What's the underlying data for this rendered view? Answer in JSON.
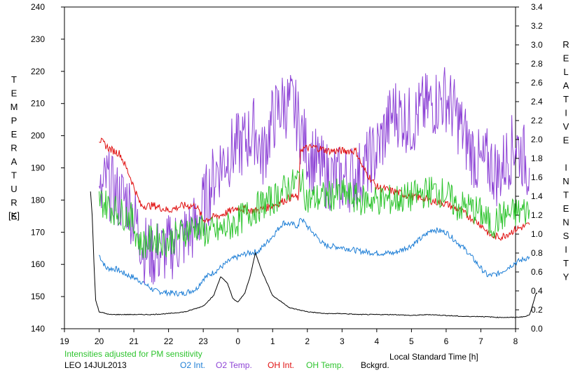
{
  "chart_data": {
    "type": "line",
    "title": "",
    "xlabel": "Local Standard Time [h]",
    "ylabel_left": "TEMPERATURE [K]",
    "ylabel_right": "RELATIVE INTENSITY",
    "ylabel_left_word": "TEMPERATURE",
    "ylabel_left_unit": "[K]",
    "ylabel_right_words": [
      "RELATIVE",
      "INTENSITY"
    ],
    "note": "Intensities adjusted for PM sensitivity",
    "station_date": "LEO 14JUL2013",
    "xlim": [
      19,
      32
    ],
    "x_tick_labels": [
      "19",
      "20",
      "21",
      "22",
      "23",
      "0",
      "1",
      "2",
      "3",
      "4",
      "5",
      "6",
      "7",
      "8"
    ],
    "ylim_left": [
      140,
      240
    ],
    "y_left_ticks": [
      140,
      150,
      160,
      170,
      180,
      190,
      200,
      210,
      220,
      230,
      240
    ],
    "ylim_right": [
      0,
      3.4
    ],
    "y_right_ticks": [
      "0.0",
      "0.2",
      "0.4",
      "0.6",
      "0.8",
      "1.0",
      "1.2",
      "1.4",
      "1.6",
      "1.8",
      "2.0",
      "2.2",
      "2.4",
      "2.6",
      "2.8",
      "3.0",
      "3.2",
      "3.4"
    ],
    "grid": false,
    "legend_position": "bottom",
    "series": [
      {
        "name": "O2 Int.",
        "axis": "right",
        "color": "#1f7fd6",
        "x": [
          20.0,
          20.2,
          20.5,
          20.8,
          21.0,
          21.3,
          21.6,
          22.0,
          22.4,
          22.8,
          23.0,
          23.4,
          23.8,
          24.2,
          24.6,
          25.0,
          25.3,
          25.6,
          25.75,
          25.8,
          26.0,
          26.5,
          27.0,
          27.5,
          28.0,
          28.5,
          29.0,
          29.3,
          29.6,
          30.0,
          30.3,
          30.6,
          31.0,
          31.2,
          31.5,
          32.0,
          32.4
        ],
        "y": [
          0.78,
          0.64,
          0.63,
          0.57,
          0.54,
          0.48,
          0.4,
          0.38,
          0.37,
          0.42,
          0.53,
          0.62,
          0.73,
          0.79,
          0.82,
          0.98,
          1.12,
          1.1,
          1.08,
          1.18,
          1.08,
          0.88,
          0.86,
          0.82,
          0.8,
          0.8,
          0.88,
          0.96,
          1.05,
          1.02,
          0.92,
          0.82,
          0.64,
          0.56,
          0.58,
          0.7,
          0.76
        ]
      },
      {
        "name": "O2 Temp.",
        "axis": "left",
        "color": "#8e44d6",
        "x": [
          20.0,
          20.2,
          20.5,
          20.8,
          21.0,
          21.3,
          21.6,
          22.0,
          22.4,
          22.8,
          23.0,
          23.4,
          23.8,
          24.2,
          24.5,
          24.7,
          25.0,
          25.3,
          25.6,
          26.0,
          26.5,
          27.0,
          27.5,
          28.0,
          28.5,
          29.0,
          29.3,
          29.6,
          30.0,
          30.3,
          30.6,
          31.0,
          31.2,
          31.5,
          32.0,
          32.4
        ],
        "y": [
          178,
          186,
          181,
          180,
          175,
          165,
          163,
          165,
          168,
          172,
          178,
          190,
          195,
          198,
          202,
          193,
          205,
          210,
          209,
          195,
          188,
          186,
          188,
          195,
          208,
          204,
          208,
          210,
          212,
          206,
          198,
          190,
          192,
          188,
          198,
          190
        ]
      },
      {
        "name": "OH Int.",
        "axis": "right",
        "color": "#e01010",
        "x": [
          20.0,
          20.3,
          20.6,
          20.9,
          21.2,
          21.6,
          22.0,
          22.4,
          22.8,
          23.0,
          23.5,
          24.0,
          24.3,
          24.6,
          25.0,
          25.3,
          25.6,
          25.75,
          25.8,
          26.2,
          26.6,
          27.0,
          27.4,
          27.6,
          28.0,
          28.5,
          29.0,
          29.3,
          29.6,
          30.0,
          30.4,
          30.8,
          31.0,
          31.3,
          31.6,
          32.0,
          32.4
        ],
        "y": [
          2.0,
          1.9,
          1.85,
          1.6,
          1.3,
          1.3,
          1.25,
          1.3,
          1.3,
          1.15,
          1.2,
          1.28,
          1.25,
          1.25,
          1.3,
          1.35,
          1.4,
          1.38,
          1.9,
          1.92,
          1.88,
          1.88,
          1.88,
          1.7,
          1.5,
          1.45,
          1.4,
          1.38,
          1.35,
          1.32,
          1.25,
          1.15,
          1.1,
          0.98,
          0.97,
          1.05,
          1.1
        ]
      },
      {
        "name": "OH Temp.",
        "axis": "left",
        "color": "#2ec42e",
        "x": [
          20.0,
          20.3,
          20.6,
          20.9,
          21.2,
          21.6,
          22.0,
          22.4,
          22.8,
          23.0,
          23.4,
          23.8,
          24.2,
          24.6,
          25.0,
          25.3,
          25.6,
          25.8,
          26.0,
          26.5,
          27.0,
          27.5,
          28.0,
          28.5,
          29.0,
          29.3,
          29.6,
          30.0,
          30.3,
          30.6,
          31.0,
          31.3,
          31.6,
          32.0,
          32.4
        ],
        "y": [
          180,
          178,
          176,
          175,
          166,
          168,
          167,
          170,
          172,
          170,
          170,
          172,
          175,
          178,
          180,
          183,
          185,
          187,
          180,
          181,
          182,
          180,
          180,
          180,
          181,
          182,
          183,
          182,
          178,
          178,
          176,
          172,
          175,
          176,
          177
        ]
      },
      {
        "name": "Bckgrd.",
        "axis": "right",
        "color": "#000000",
        "x": [
          19.75,
          19.8,
          19.85,
          19.9,
          20.0,
          20.3,
          20.6,
          21.0,
          21.5,
          22.0,
          22.5,
          23.0,
          23.3,
          23.5,
          23.7,
          23.85,
          24.0,
          24.2,
          24.35,
          24.5,
          24.7,
          25.0,
          25.5,
          26.0,
          26.5,
          27.0,
          27.5,
          28.0,
          28.5,
          29.0,
          29.5,
          30.0,
          30.5,
          31.0,
          31.5,
          32.0,
          32.3,
          32.4,
          32.45,
          32.5,
          32.6
        ],
        "y": [
          1.45,
          1.2,
          0.7,
          0.3,
          0.18,
          0.15,
          0.15,
          0.15,
          0.15,
          0.16,
          0.18,
          0.24,
          0.35,
          0.55,
          0.48,
          0.32,
          0.28,
          0.38,
          0.55,
          0.8,
          0.6,
          0.35,
          0.22,
          0.18,
          0.16,
          0.16,
          0.15,
          0.15,
          0.15,
          0.14,
          0.15,
          0.14,
          0.13,
          0.13,
          0.12,
          0.12,
          0.13,
          0.15,
          0.2,
          0.26,
          0.38
        ]
      }
    ]
  },
  "colors": {
    "note": "#2ec42e",
    "axis": "#000000"
  }
}
